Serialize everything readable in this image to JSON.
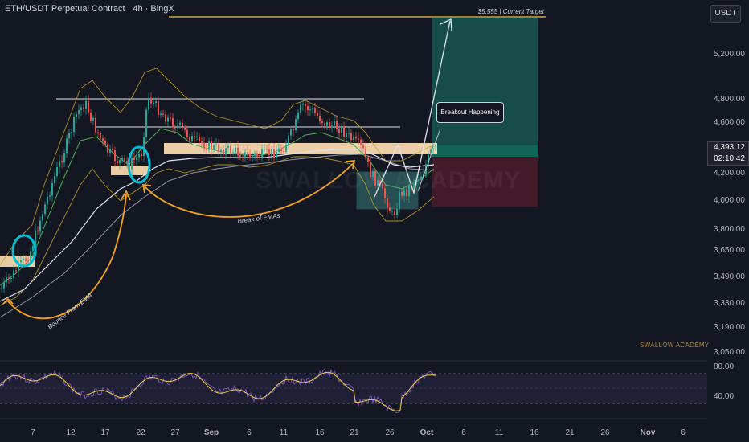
{
  "header": {
    "title": "ETH/USDT Perpetual Contract · 4h · BingX"
  },
  "toolbar": {
    "currency_label": "USDT"
  },
  "price_axis": {
    "ticks": [
      "5,200.00",
      "4,800.00",
      "4,600.00",
      "4,200.00",
      "4,000.00",
      "3,800.00",
      "3,650.00",
      "3,490.00",
      "3,330.00",
      "3,190.00",
      "3,050.00"
    ],
    "current_price": "4,393.12",
    "countdown": "02:10:42"
  },
  "rsi_axis": {
    "ticks": [
      "80.00",
      "40.00"
    ]
  },
  "time_axis": {
    "labels": [
      "7",
      "12",
      "17",
      "22",
      "27",
      "Sep",
      "6",
      "11",
      "16",
      "21",
      "26",
      "Oct",
      "6",
      "11",
      "16",
      "21",
      "26",
      "Nov",
      "6"
    ]
  },
  "annotations": {
    "target": "$5,555 | Current Target",
    "breakout": "Breakout Happening",
    "break_emas": "Break of EMAs",
    "bounce": "Bounce From EMA"
  },
  "branding": {
    "academy": "SWALLOW ACADEMY",
    "watermark": "SWALLOW ACADEMY"
  },
  "colors": {
    "background": "#131722",
    "up": "#26a69a",
    "down": "#ef5350",
    "zone": "#ffe0b2",
    "highlight_ring": "#00bcd4",
    "arrow": "#f7a21b",
    "band": "#c9a227",
    "ema_white": "#e0e3eb",
    "ema_green": "#4caf50",
    "rsi": "#7e57c2"
  }
}
